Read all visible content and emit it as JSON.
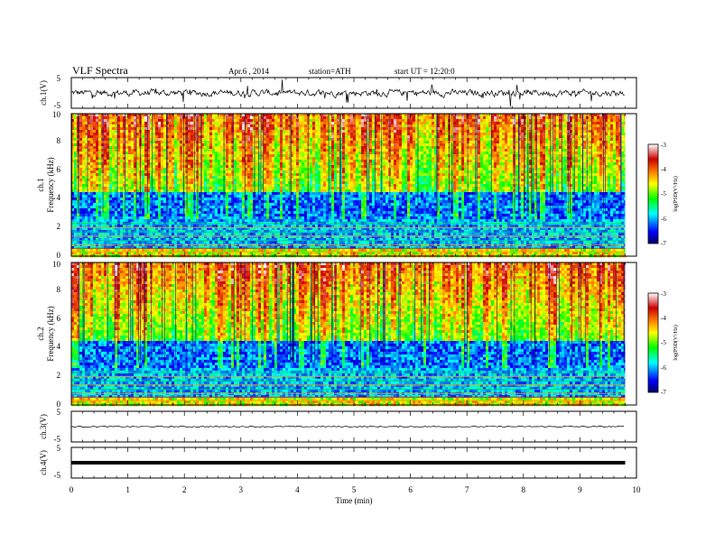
{
  "header": {
    "title": "VLF Spectra",
    "date": "Apr.6 , 2014",
    "station": "station=ATH",
    "start": "start UT = 12:20:0"
  },
  "chart_data": [
    {
      "type": "line",
      "ylabel": "ch.1(V)",
      "ylim": [
        -5,
        5
      ],
      "y_ticks": [
        "5",
        "-5"
      ],
      "description_level": "noisy trace, mean ~0",
      "x_range_min": [
        0,
        9.8
      ],
      "color": "#000000"
    },
    {
      "type": "heatmap",
      "ylabel": "ch.1\nFrequency (kHz)",
      "ylabel_lines": [
        "ch.1",
        "Frequency (kHz)"
      ],
      "ylim": [
        0,
        10
      ],
      "y_ticks": [
        "0",
        "2",
        "4",
        "6",
        "8",
        "10"
      ],
      "x_range_min": [
        0,
        9.8
      ],
      "colorbar": {
        "label": "log(PSD(V²/Hz)",
        "ticks": [
          "-3",
          "-4",
          "-5",
          "-6",
          "-7"
        ],
        "range": [
          -7,
          -3
        ],
        "colors": [
          "#000066",
          "#0000ff",
          "#00ffff",
          "#00ff00",
          "#ffff00",
          "#ff8000",
          "#cc0000",
          "#ffffff"
        ]
      }
    },
    {
      "type": "heatmap",
      "ylabel": "ch.2\nFrequency (kHz)",
      "ylabel_lines": [
        "ch.2",
        "Frequency (kHz)"
      ],
      "ylim": [
        0,
        10
      ],
      "y_ticks": [
        "0",
        "2",
        "4",
        "6",
        "8",
        "10"
      ],
      "x_range_min": [
        0,
        9.8
      ],
      "colorbar": {
        "label": "log(PSD(V²/Hz)",
        "ticks": [
          "-3",
          "-4",
          "-5",
          "-6",
          "-7"
        ],
        "range": [
          -7,
          -3
        ],
        "colors": [
          "#000066",
          "#0000ff",
          "#00ffff",
          "#00ff00",
          "#ffff00",
          "#ff8000",
          "#cc0000",
          "#ffffff"
        ]
      }
    },
    {
      "type": "line",
      "ylabel": "ch.3(V)",
      "ylim": [
        -5,
        5
      ],
      "y_ticks": [
        "5",
        "-5"
      ],
      "level": 0,
      "x_range_min": [
        0,
        9.8
      ]
    },
    {
      "type": "line",
      "ylabel": "ch.4(V)",
      "ylim": [
        -5,
        5
      ],
      "y_ticks": [
        "5",
        "-5"
      ],
      "level": 0,
      "x_range_min": [
        0,
        9.8
      ]
    }
  ],
  "x_axis": {
    "label": "Time (min)",
    "range": [
      0,
      10
    ],
    "ticks": [
      "0",
      "1",
      "2",
      "3",
      "4",
      "5",
      "6",
      "7",
      "8",
      "9",
      "10"
    ]
  }
}
